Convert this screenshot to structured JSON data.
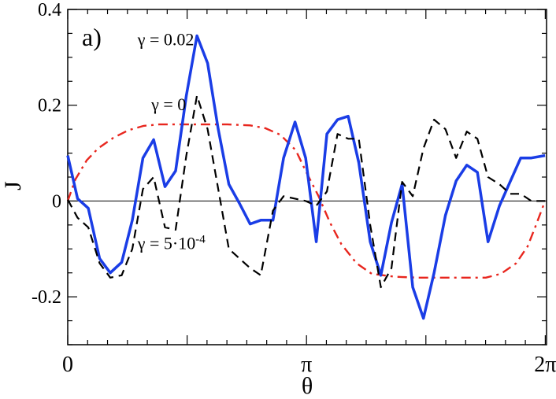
{
  "chart_data": {
    "type": "line",
    "panel_label": "a)",
    "xlabel": "θ",
    "ylabel": "J",
    "xlim": [
      0,
      6.3
    ],
    "ylim": [
      -0.3,
      0.4
    ],
    "x_ticks": [
      {
        "value": 0,
        "label": "0"
      },
      {
        "value": 3.14159,
        "label": "π"
      },
      {
        "value": 6.28318,
        "label": "2π"
      }
    ],
    "y_ticks": [
      {
        "value": 0.4,
        "label": "0.4"
      },
      {
        "value": 0.2,
        "label": "0.2"
      },
      {
        "value": 0,
        "label": "0"
      },
      {
        "value": -0.2,
        "label": "-0.2"
      }
    ],
    "series": [
      {
        "name": "γ = 0",
        "color": "#e8261e",
        "style": "dashdot",
        "x": [
          0,
          0.1,
          0.25,
          0.4,
          0.6,
          0.8,
          1.0,
          1.2,
          1.5,
          1.8,
          2.1,
          2.4,
          2.6,
          2.8,
          3.0,
          3.14,
          3.3,
          3.45,
          3.6,
          3.8,
          4.0,
          4.3,
          4.6,
          4.9,
          5.2,
          5.5,
          5.7,
          5.9,
          6.05,
          6.15,
          6.28
        ],
        "y": [
          0.0,
          0.045,
          0.085,
          0.11,
          0.132,
          0.148,
          0.157,
          0.16,
          0.16,
          0.16,
          0.16,
          0.158,
          0.152,
          0.138,
          0.106,
          0.06,
          0.01,
          -0.045,
          -0.09,
          -0.13,
          -0.152,
          -0.158,
          -0.16,
          -0.16,
          -0.16,
          -0.16,
          -0.152,
          -0.13,
          -0.095,
          -0.055,
          0.0
        ]
      },
      {
        "name": "γ = 0.02",
        "color": "#1a3de6",
        "style": "solid",
        "x": [
          0,
          0.13,
          0.27,
          0.42,
          0.56,
          0.71,
          0.85,
          0.99,
          1.13,
          1.28,
          1.42,
          1.56,
          1.7,
          1.84,
          1.98,
          2.12,
          2.26,
          2.4,
          2.54,
          2.7,
          2.84,
          2.99,
          3.13,
          3.27,
          3.41,
          3.55,
          3.69,
          3.83,
          3.98,
          4.12,
          4.26,
          4.4,
          4.54,
          4.68,
          4.82,
          4.97,
          5.11,
          5.25,
          5.39,
          5.53,
          5.68,
          5.82,
          5.96,
          6.1,
          6.28
        ],
        "y": [
          0.095,
          0.005,
          -0.015,
          -0.12,
          -0.15,
          -0.128,
          -0.04,
          0.09,
          0.128,
          0.03,
          0.063,
          0.22,
          0.345,
          0.288,
          0.15,
          0.035,
          -0.005,
          -0.048,
          -0.04,
          -0.04,
          0.09,
          0.165,
          0.09,
          -0.085,
          0.14,
          0.17,
          0.177,
          0.08,
          -0.085,
          -0.155,
          -0.045,
          0.035,
          -0.18,
          -0.245,
          -0.15,
          -0.03,
          0.042,
          0.075,
          0.06,
          -0.085,
          -0.01,
          0.04,
          0.09,
          0.09,
          0.095
        ]
      },
      {
        "name": "γ = 5·10⁻⁴",
        "color": "#000000",
        "style": "dashed",
        "x": [
          0,
          0.13,
          0.27,
          0.42,
          0.56,
          0.71,
          0.85,
          0.99,
          1.13,
          1.28,
          1.42,
          1.56,
          1.7,
          1.84,
          1.98,
          2.12,
          2.26,
          2.4,
          2.54,
          2.7,
          2.84,
          2.99,
          3.13,
          3.27,
          3.41,
          3.55,
          3.69,
          3.83,
          3.98,
          4.12,
          4.26,
          4.4,
          4.54,
          4.68,
          4.82,
          4.97,
          5.11,
          5.25,
          5.39,
          5.53,
          5.68,
          5.82,
          5.96,
          6.1,
          6.28
        ],
        "y": [
          0.003,
          -0.035,
          -0.055,
          -0.13,
          -0.16,
          -0.155,
          -0.1,
          0.025,
          0.05,
          -0.055,
          -0.06,
          0.095,
          0.22,
          0.15,
          0.025,
          -0.1,
          -0.12,
          -0.14,
          -0.155,
          -0.02,
          0.01,
          0.005,
          0.0,
          -0.01,
          0.02,
          0.14,
          0.13,
          0.13,
          -0.05,
          -0.18,
          -0.14,
          0.04,
          0.01,
          0.11,
          0.17,
          0.15,
          0.09,
          0.145,
          0.13,
          0.05,
          0.035,
          0.015,
          0.015,
          0.0,
          0.0
        ]
      }
    ],
    "annotations": [
      {
        "text": "γ = 0.02",
        "x": 0.92,
        "y": 0.325
      },
      {
        "text": "γ = 0",
        "x": 1.1,
        "y": 0.19
      },
      {
        "text": "γ = 5·10",
        "sup": "-4",
        "x": 0.92,
        "y": -0.1
      }
    ],
    "zero_line": true,
    "grid": false
  }
}
